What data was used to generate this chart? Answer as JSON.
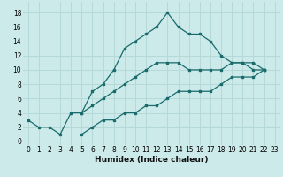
{
  "xlabel": "Humidex (Indice chaleur)",
  "bg_color": "#cdeaea",
  "grid_color": "#b5d8d8",
  "line_color": "#1a6b6b",
  "xlim": [
    -0.5,
    23.5
  ],
  "ylim": [
    -0.5,
    19.5
  ],
  "xticks": [
    0,
    1,
    2,
    3,
    4,
    5,
    6,
    7,
    8,
    9,
    10,
    11,
    12,
    13,
    14,
    15,
    16,
    17,
    18,
    19,
    20,
    21,
    22,
    23
  ],
  "yticks": [
    0,
    2,
    4,
    6,
    8,
    10,
    12,
    14,
    16,
    18
  ],
  "line1_x": [
    0,
    1,
    2,
    3,
    4,
    5,
    6,
    7,
    8,
    9,
    10,
    11,
    12,
    13,
    14,
    15,
    16,
    17,
    18,
    19,
    20,
    21,
    22
  ],
  "line1_y": [
    3,
    2,
    2,
    1,
    4,
    4,
    7,
    8,
    10,
    13,
    14,
    15,
    16,
    18,
    16,
    15,
    15,
    14,
    12,
    11,
    11,
    10,
    10
  ],
  "line2_x": [
    5,
    6,
    7,
    8,
    9,
    10,
    11,
    12,
    13,
    14,
    15,
    16,
    17,
    18,
    19,
    20,
    21,
    22
  ],
  "line2_y": [
    4,
    5,
    6,
    7,
    8,
    9,
    10,
    11,
    11,
    11,
    10,
    10,
    10,
    10,
    11,
    11,
    11,
    10
  ],
  "line3_x": [
    5,
    6,
    7,
    8,
    9,
    10,
    11,
    12,
    13,
    14,
    15,
    16,
    17,
    18,
    19,
    20,
    21,
    22
  ],
  "line3_y": [
    1,
    2,
    3,
    3,
    4,
    4,
    5,
    5,
    6,
    7,
    7,
    7,
    7,
    8,
    9,
    9,
    9,
    10
  ]
}
